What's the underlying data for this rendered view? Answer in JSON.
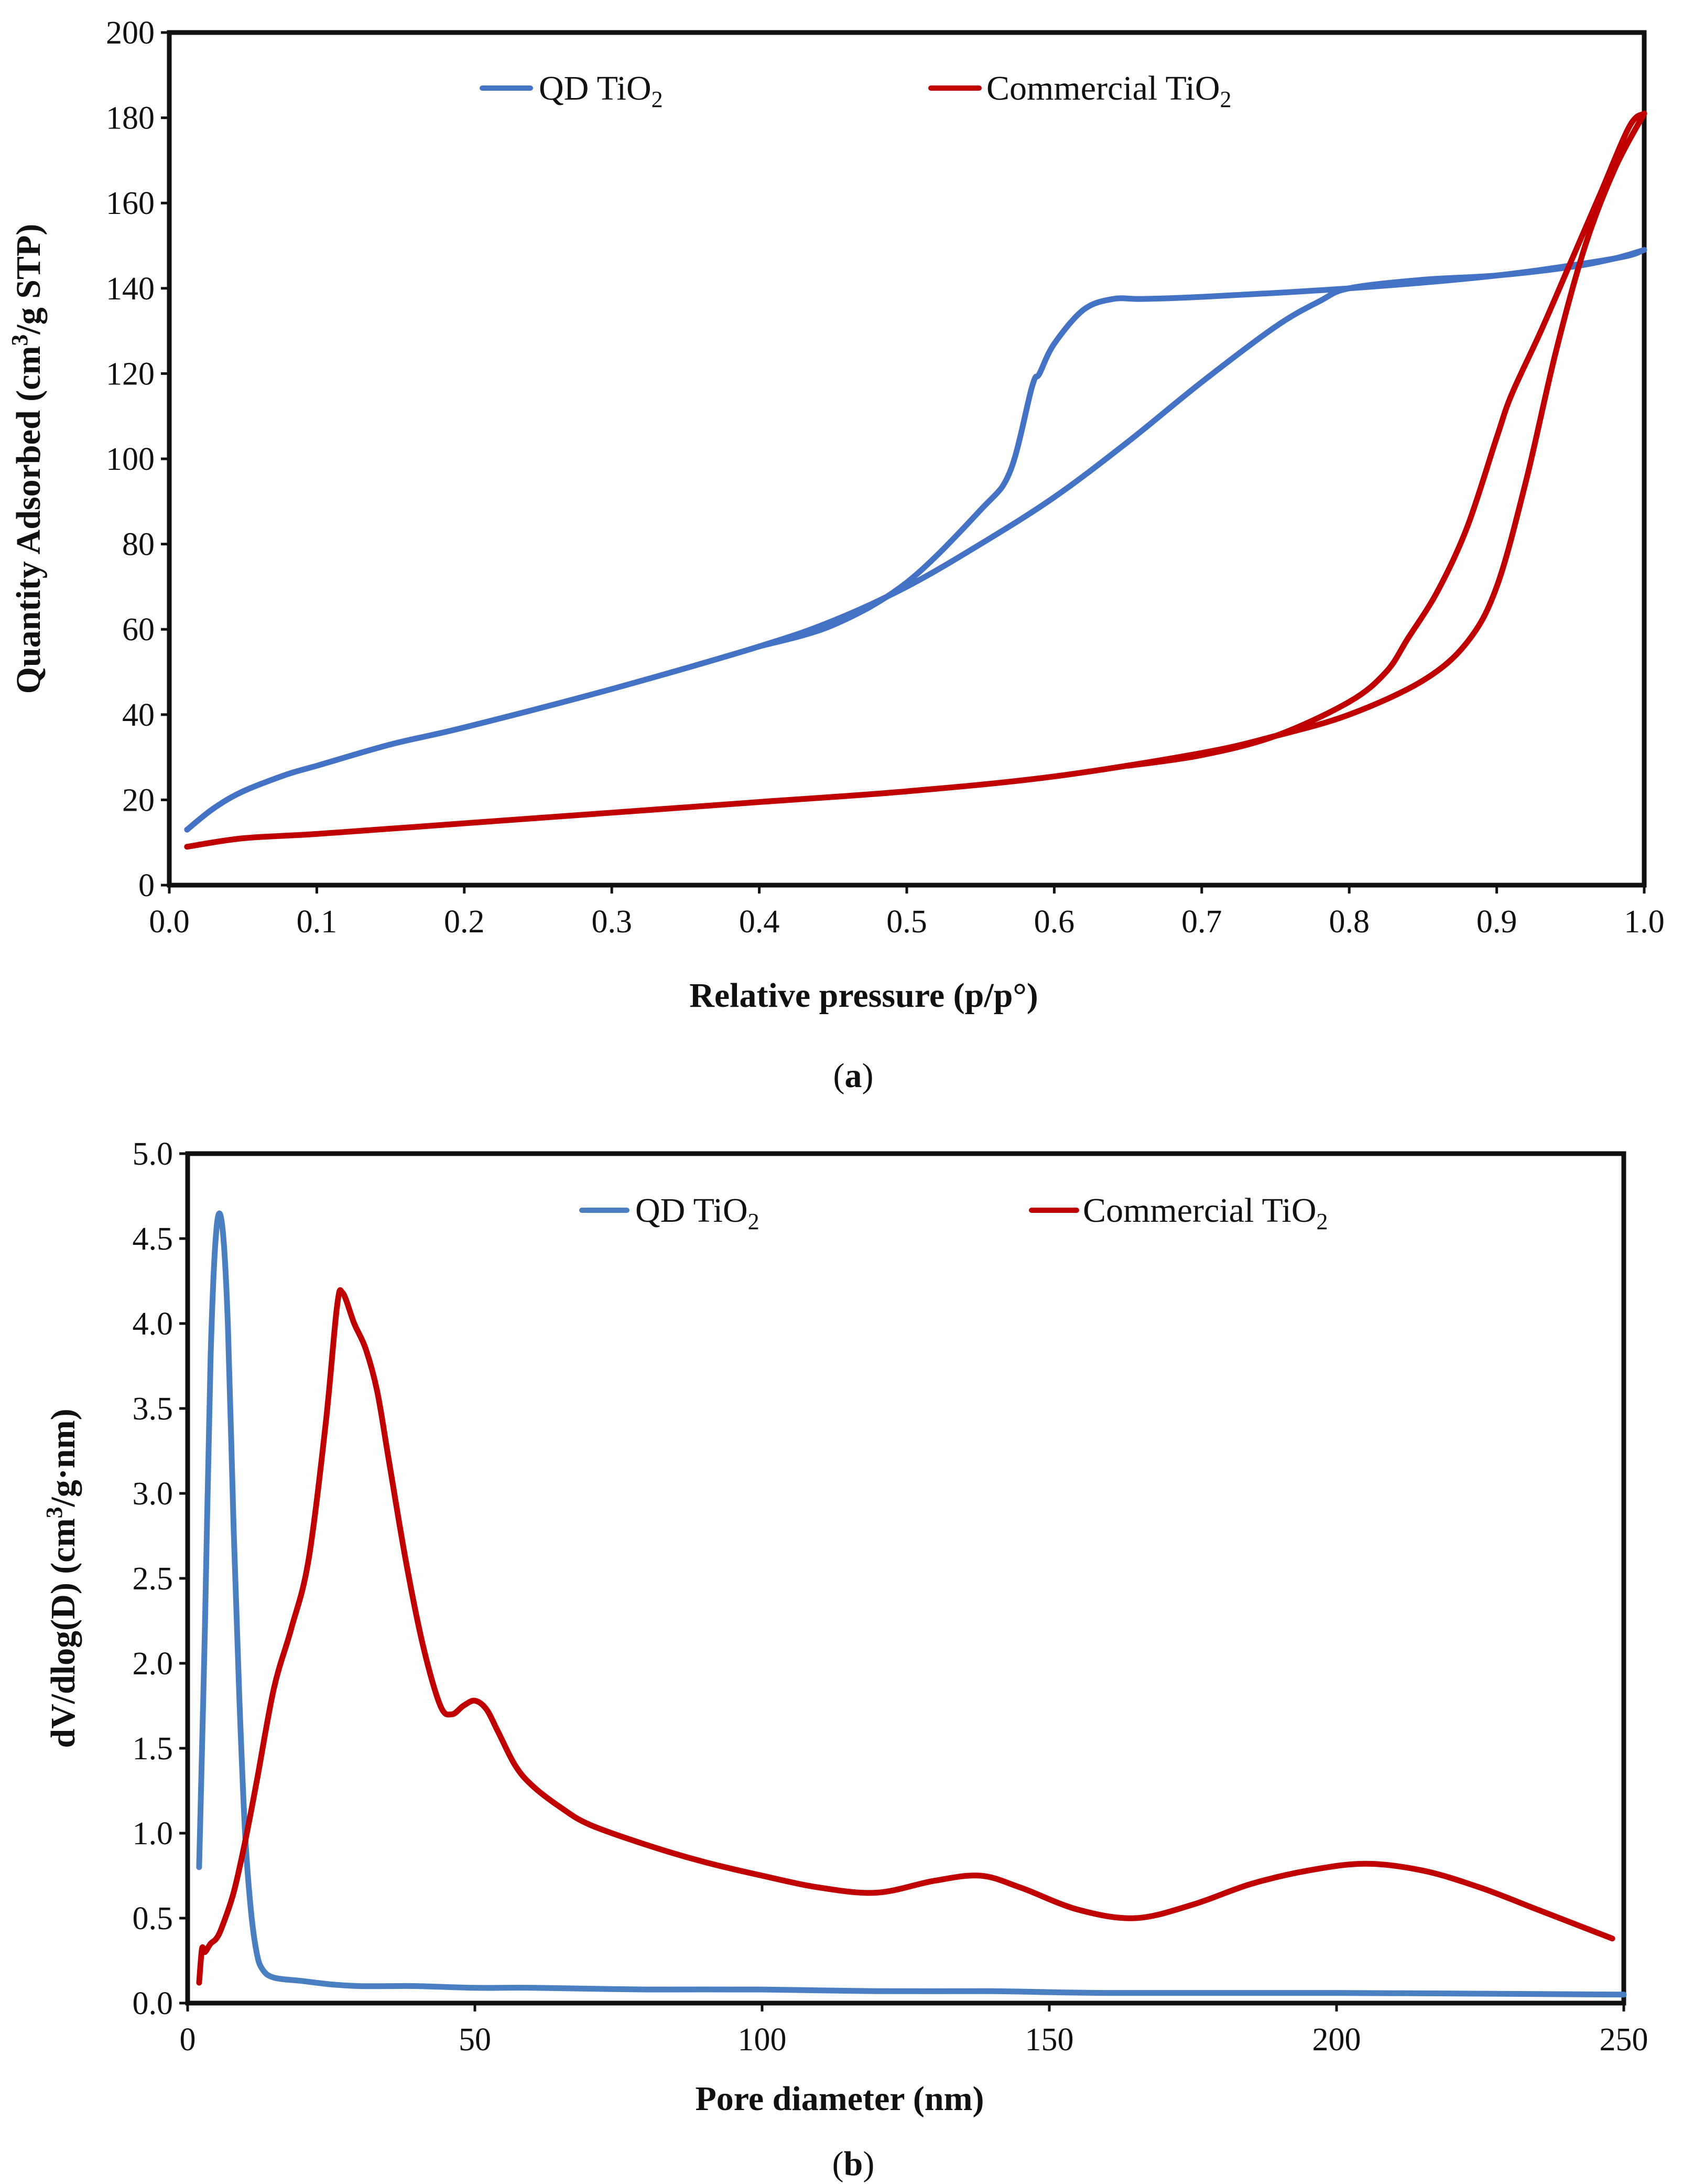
{
  "chart_data": [
    {
      "type": "line",
      "panel": "a",
      "xlabel": "Relative pressure (p/p°)",
      "ylabel_parts": [
        "Quantity Adsorbed (cm",
        "3",
        "/g STP)"
      ],
      "xlim": [
        0.0,
        1.0
      ],
      "ylim": [
        0,
        200
      ],
      "xticks": [
        "0.0",
        "0.1",
        "0.2",
        "0.3",
        "0.4",
        "0.5",
        "0.6",
        "0.7",
        "0.8",
        "0.9",
        "1.0"
      ],
      "yticks": [
        "0",
        "20",
        "40",
        "60",
        "80",
        "100",
        "120",
        "140",
        "160",
        "180",
        "200"
      ],
      "grid": false,
      "legend_position": "top",
      "series": [
        {
          "name": "QD TiO2",
          "legend_main": "QD TiO",
          "legend_sub": "2",
          "color": "#4472c4",
          "branch": "adsorption",
          "x": [
            0.012,
            0.03,
            0.05,
            0.08,
            0.1,
            0.15,
            0.2,
            0.3,
            0.4,
            0.45,
            0.5,
            0.55,
            0.6,
            0.65,
            0.7,
            0.75,
            0.78,
            0.8,
            0.85,
            0.9,
            0.95,
            0.98,
            1.0
          ],
          "y": [
            13,
            18,
            22,
            26,
            28,
            33,
            37,
            46,
            56,
            62,
            70,
            80,
            91,
            104,
            118,
            131,
            137,
            140,
            142,
            143,
            145,
            147,
            149
          ]
        },
        {
          "name": "QD TiO2",
          "legend_main": "",
          "legend_sub": "",
          "color": "#4472c4",
          "branch": "desorption",
          "x": [
            1.0,
            0.98,
            0.9,
            0.8,
            0.7,
            0.66,
            0.64,
            0.62,
            0.6,
            0.59,
            0.585,
            0.57,
            0.55,
            0.5,
            0.45,
            0.4
          ],
          "y": [
            149,
            147,
            143,
            140,
            138,
            137.5,
            137.5,
            135,
            127,
            120,
            117,
            97,
            88,
            71,
            61,
            56
          ]
        },
        {
          "name": "Commercial TiO2",
          "legend_main": "Commercial TiO",
          "legend_sub": "2",
          "color": "#c00000",
          "branch": "adsorption",
          "x": [
            0.012,
            0.05,
            0.1,
            0.2,
            0.3,
            0.4,
            0.5,
            0.6,
            0.7,
            0.75,
            0.8,
            0.85,
            0.88,
            0.9,
            0.92,
            0.94,
            0.96,
            0.98,
            1.0
          ],
          "y": [
            9,
            11,
            12,
            14.5,
            17,
            19.5,
            22,
            25.5,
            31,
            35,
            40,
            48,
            57,
            70,
            95,
            125,
            150,
            168,
            181
          ]
        },
        {
          "name": "Commercial TiO2",
          "legend_main": "",
          "legend_sub": "",
          "color": "#c00000",
          "branch": "desorption",
          "x": [
            1.0,
            0.99,
            0.97,
            0.95,
            0.93,
            0.91,
            0.9,
            0.88,
            0.86,
            0.84,
            0.825,
            0.8,
            0.75,
            0.7,
            0.65
          ],
          "y": [
            181,
            178,
            162,
            146,
            130,
            115,
            105,
            84,
            69,
            58,
            50,
            43,
            35,
            30.5,
            28
          ]
        }
      ]
    },
    {
      "type": "line",
      "panel": "b",
      "xlabel": "Pore diameter (nm)",
      "ylabel_parts": [
        "dV/dlog(D) (cm",
        "3",
        "/g·nm)"
      ],
      "xlim": [
        0,
        250
      ],
      "ylim": [
        0.0,
        5.0
      ],
      "xticks": [
        "0",
        "50",
        "100",
        "150",
        "200",
        "250"
      ],
      "yticks": [
        "0.0",
        "0.5",
        "1.0",
        "1.5",
        "2.0",
        "2.5",
        "3.0",
        "3.5",
        "4.0",
        "4.5",
        "5.0"
      ],
      "grid": false,
      "legend_position": "top",
      "series": [
        {
          "name": "QD TiO2",
          "legend_main": "QD TiO",
          "legend_sub": "2",
          "color": "#4a7fc1",
          "x": [
            2,
            3,
            4,
            5,
            6,
            7,
            8,
            9,
            10,
            11,
            12,
            13,
            15,
            20,
            25,
            30,
            35,
            40,
            50,
            60,
            80,
            100,
            120,
            140,
            160,
            200,
            250
          ],
          "y": [
            0.8,
            2.2,
            3.8,
            4.55,
            4.58,
            4.0,
            2.8,
            1.8,
            1.0,
            0.55,
            0.3,
            0.2,
            0.15,
            0.13,
            0.11,
            0.1,
            0.1,
            0.1,
            0.09,
            0.09,
            0.08,
            0.08,
            0.07,
            0.07,
            0.06,
            0.06,
            0.05
          ]
        },
        {
          "name": "Commercial TiO2",
          "legend_main": "Commercial TiO",
          "legend_sub": "2",
          "color": "#c00000",
          "x": [
            2,
            2.5,
            3,
            4,
            5,
            6,
            8,
            10,
            12,
            15,
            18,
            21,
            24,
            26,
            27,
            29,
            31,
            33,
            35,
            38,
            41,
            44,
            46,
            48,
            50,
            52,
            54,
            57,
            60,
            65,
            70,
            80,
            90,
            100,
            110,
            120,
            130,
            138,
            145,
            155,
            165,
            175,
            185,
            195,
            205,
            215,
            225,
            235,
            248
          ],
          "y": [
            0.12,
            0.32,
            0.3,
            0.35,
            0.38,
            0.45,
            0.65,
            0.95,
            1.3,
            1.85,
            2.2,
            2.6,
            3.4,
            4.1,
            4.18,
            4.0,
            3.85,
            3.6,
            3.2,
            2.6,
            2.1,
            1.75,
            1.7,
            1.75,
            1.78,
            1.73,
            1.6,
            1.4,
            1.28,
            1.15,
            1.05,
            0.93,
            0.83,
            0.75,
            0.68,
            0.65,
            0.72,
            0.75,
            0.68,
            0.55,
            0.5,
            0.58,
            0.7,
            0.78,
            0.82,
            0.78,
            0.68,
            0.55,
            0.38
          ]
        }
      ]
    }
  ],
  "labels": {
    "panel_a": [
      "(",
      "a",
      ")"
    ],
    "panel_b": [
      "(",
      "b",
      ")"
    ]
  }
}
